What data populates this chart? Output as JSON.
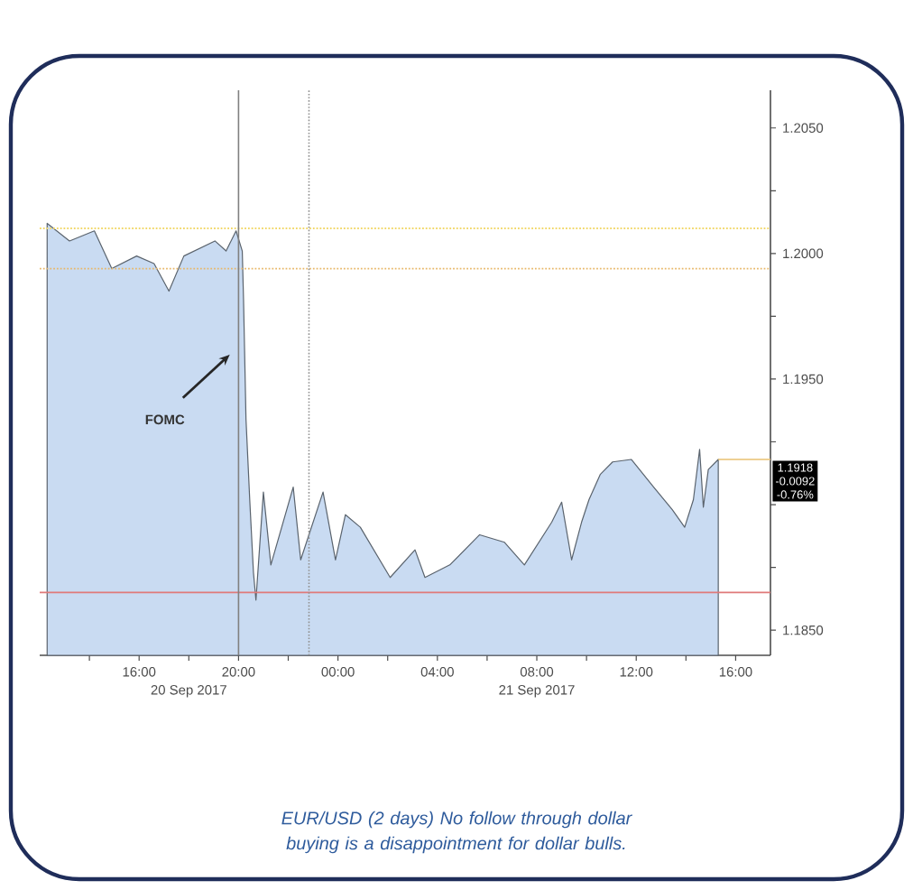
{
  "chart_data": {
    "type": "area",
    "series": [
      {
        "color": "#c9dbf2",
        "x": [
          "2017-09-20T12:18",
          "2017-09-20T13:12",
          "2017-09-20T14:12",
          "2017-09-20T14:54",
          "2017-09-20T15:54",
          "2017-09-20T16:36",
          "2017-09-20T17:12",
          "2017-09-20T17:48",
          "2017-09-20T19:03",
          "2017-09-20T19:30",
          "2017-09-20T19:54",
          "2017-09-20T20:09",
          "2017-09-20T20:12",
          "2017-09-20T20:18",
          "2017-09-20T20:27",
          "2017-09-20T20:36",
          "2017-09-20T20:42",
          "2017-09-20T21:00",
          "2017-09-20T21:18",
          "2017-09-20T22:12",
          "2017-09-20T22:30",
          "2017-09-20T23:24",
          "2017-09-20T23:54",
          "2017-09-21T00:18",
          "2017-09-21T00:54",
          "2017-09-21T02:06",
          "2017-09-21T03:06",
          "2017-09-21T03:30",
          "2017-09-21T04:30",
          "2017-09-21T05:42",
          "2017-09-21T06:42",
          "2017-09-21T07:30",
          "2017-09-21T08:36",
          "2017-09-21T09:00",
          "2017-09-21T09:24",
          "2017-09-21T09:48",
          "2017-09-21T10:06",
          "2017-09-21T10:33",
          "2017-09-21T11:03",
          "2017-09-21T11:48",
          "2017-09-21T12:42",
          "2017-09-21T13:27",
          "2017-09-21T13:57",
          "2017-09-21T14:18",
          "2017-09-21T14:33",
          "2017-09-21T14:42",
          "2017-09-21T14:54",
          "2017-09-21T15:18"
        ],
        "values": [
          1.2012,
          1.2005,
          1.2009,
          1.1994,
          1.1999,
          1.1996,
          1.1985,
          1.1999,
          1.2005,
          1.2001,
          1.2009,
          1.2001,
          1.1982,
          1.1934,
          1.1902,
          1.1873,
          1.1862,
          1.1905,
          1.1876,
          1.1907,
          1.1878,
          1.1905,
          1.1878,
          1.1896,
          1.1891,
          1.1871,
          1.1882,
          1.1871,
          1.1876,
          1.1888,
          1.1885,
          1.1876,
          1.1893,
          1.1901,
          1.1878,
          1.1893,
          1.1902,
          1.1912,
          1.1917,
          1.1918,
          1.1907,
          1.1898,
          1.1891,
          1.1902,
          1.1922,
          1.1899,
          1.1914,
          1.1918
        ]
      }
    ],
    "xlim": [
      "2017-09-20T12:00",
      "2017-09-21T17:24"
    ],
    "ylim": [
      1.184,
      1.2065
    ],
    "xticks": [
      {
        "value": "2017-09-20T14:00",
        "label": null
      },
      {
        "value": "2017-09-20T16:00",
        "label": "16:00"
      },
      {
        "value": "2017-09-20T18:00",
        "label": null
      },
      {
        "value": "2017-09-20T20:00",
        "label": "20:00"
      },
      {
        "value": "2017-09-20T22:00",
        "label": null
      },
      {
        "value": "2017-09-21T00:00",
        "label": "00:00"
      },
      {
        "value": "2017-09-21T02:00",
        "label": null
      },
      {
        "value": "2017-09-21T04:00",
        "label": "04:00"
      },
      {
        "value": "2017-09-21T06:00",
        "label": null
      },
      {
        "value": "2017-09-21T08:00",
        "label": "08:00"
      },
      {
        "value": "2017-09-21T10:00",
        "label": null
      },
      {
        "value": "2017-09-21T12:00",
        "label": "12:00"
      },
      {
        "value": "2017-09-21T14:00",
        "label": null
      },
      {
        "value": "2017-09-21T16:00",
        "label": "16:00"
      }
    ],
    "yticks": [
      {
        "value": 1.185,
        "label": "1.1850"
      },
      {
        "value": 1.1875,
        "label": null
      },
      {
        "value": 1.19,
        "label": null
      },
      {
        "value": 1.1925,
        "label": null
      },
      {
        "value": 1.195,
        "label": "1.1950"
      },
      {
        "value": 1.1975,
        "label": null
      },
      {
        "value": 1.2,
        "label": "1.2000"
      },
      {
        "value": 1.2025,
        "label": null
      },
      {
        "value": 1.205,
        "label": "1.2050"
      }
    ],
    "ref_lines": [
      {
        "axis": "y",
        "value": 1.201,
        "color": "#f2d86a",
        "line_style": "dotted"
      },
      {
        "axis": "y",
        "value": 1.1994,
        "color": "#e8b86a",
        "line_style": "dotted"
      },
      {
        "axis": "y",
        "value": 1.1865,
        "color": "#e07a7a"
      },
      {
        "axis": "x",
        "value": "2017-09-20T20:00",
        "color": "#808080"
      },
      {
        "axis": "x",
        "value": "2017-09-20T22:50",
        "color": "#909090",
        "line_style": "dotted"
      }
    ],
    "annotations": [
      "FOMC",
      {
        "text": "1.1918",
        "x": "2017-09-21T15:18",
        "y": 1.1918
      },
      "-0.0092",
      "-0.76%",
      "20 Sep 2017",
      "21 Sep 2017",
      "EUR/USD (2 days)  No follow through dollar buying is a disappointment for dollar bulls."
    ]
  }
}
